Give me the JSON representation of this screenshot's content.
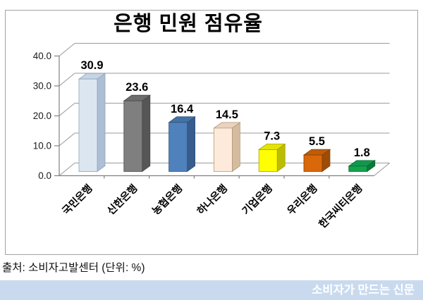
{
  "chart_data": {
    "type": "bar",
    "style": "3d-column",
    "title": "은행 민원 점유율",
    "categories": [
      "국민은행",
      "신한은행",
      "농협은행",
      "하나은행",
      "기업은행",
      "우리은행",
      "한국씨티은행"
    ],
    "values": [
      30.9,
      23.6,
      16.4,
      14.5,
      7.3,
      5.5,
      1.8
    ],
    "value_labels": [
      "30.9",
      "23.6",
      "16.4",
      "14.5",
      "7.3",
      "5.5",
      "1.8"
    ],
    "unit": "%",
    "xlabel": "",
    "ylabel": "",
    "ylim": [
      0,
      40
    ],
    "yticks": [
      0,
      10,
      20,
      30,
      40
    ],
    "ytick_labels": [
      "0.0",
      "10.0",
      "20.0",
      "30.0",
      "40.0"
    ],
    "grid": true,
    "legend": "none",
    "axis_color": "#808080",
    "grid_color": "#9b9b9b",
    "bar_colors": [
      {
        "front": "#dce6f1",
        "top": "#c6d4e5",
        "side": "#aebfd4",
        "edge": "#8fa3bb"
      },
      {
        "front": "#7f7f7f",
        "top": "#6d6d6d",
        "side": "#565656",
        "edge": "#4a4a4a"
      },
      {
        "front": "#4f81bd",
        "top": "#4472a4",
        "side": "#365d8c",
        "edge": "#2f527b"
      },
      {
        "front": "#fdeada",
        "top": "#e9d3bd",
        "side": "#d5bc9f",
        "edge": "#b49a7d"
      },
      {
        "front": "#ffff00",
        "top": "#e4e400",
        "side": "#bdbd00",
        "edge": "#a0a000"
      },
      {
        "front": "#d9680b",
        "top": "#c05c09",
        "side": "#9d4b07",
        "edge": "#874106"
      },
      {
        "front": "#14a24c",
        "top": "#11984f",
        "side": "#0b7a37",
        "edge": "#08662e"
      }
    ]
  },
  "source": "출처: 소비자고발센터 (단위: %)",
  "footer": {
    "brand": "소비자가 만드는 신문",
    "bg_color": "#c9daee",
    "text_color": "#ffffff"
  }
}
